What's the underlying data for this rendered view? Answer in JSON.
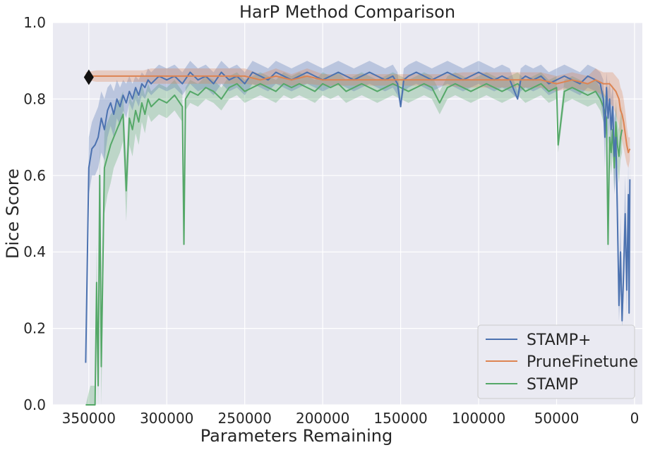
{
  "chart_data": {
    "type": "line",
    "title": "HarP Method Comparison",
    "xlabel": "Parameters Remaining",
    "ylabel": "Dice Score",
    "xlim": [
      373000,
      -5000
    ],
    "ylim": [
      0.0,
      1.0
    ],
    "x_ticks": [
      350000,
      300000,
      250000,
      200000,
      150000,
      100000,
      50000,
      0
    ],
    "x_tick_labels": [
      "350000",
      "300000",
      "250000",
      "200000",
      "150000",
      "100000",
      "50000",
      "0"
    ],
    "y_ticks": [
      0.0,
      0.2,
      0.4,
      0.6,
      0.8,
      1.0
    ],
    "y_tick_labels": [
      "0.0",
      "0.2",
      "0.4",
      "0.6",
      "0.8",
      "1.0"
    ],
    "grid": true,
    "legend_position": "bottom-right",
    "colors": {
      "background": "#eaeaf2",
      "grid": "#ffffff",
      "stamp_plus": "#4c72b0",
      "prune_finetune": "#dd8452",
      "stamp": "#55a868",
      "marker": "#111111"
    },
    "series": [
      {
        "name": "STAMP+",
        "color": "#4c72b0",
        "x": [
          352000,
          350000,
          348000,
          346000,
          344000,
          342000,
          340000,
          338000,
          336000,
          334000,
          332000,
          330000,
          328000,
          326000,
          324000,
          322000,
          320000,
          318000,
          316000,
          314000,
          312000,
          310000,
          305000,
          300000,
          295000,
          290000,
          285000,
          280000,
          275000,
          270000,
          265000,
          260000,
          255000,
          250000,
          245000,
          240000,
          235000,
          230000,
          225000,
          220000,
          215000,
          210000,
          205000,
          200000,
          195000,
          190000,
          185000,
          180000,
          175000,
          170000,
          165000,
          160000,
          155000,
          152000,
          150000,
          148000,
          145000,
          140000,
          135000,
          130000,
          125000,
          120000,
          115000,
          110000,
          105000,
          100000,
          95000,
          90000,
          85000,
          80000,
          75000,
          73000,
          70000,
          65000,
          60000,
          55000,
          50000,
          45000,
          40000,
          35000,
          30000,
          25000,
          22000,
          20000,
          19000,
          18000,
          17000,
          16000,
          15000,
          14000,
          13000,
          12000,
          11000,
          10000,
          9000,
          8000,
          7000,
          6000,
          5000,
          4000,
          3500,
          3000
        ],
        "y": [
          0.11,
          0.62,
          0.67,
          0.68,
          0.7,
          0.75,
          0.72,
          0.77,
          0.79,
          0.76,
          0.8,
          0.78,
          0.81,
          0.79,
          0.82,
          0.8,
          0.83,
          0.81,
          0.84,
          0.83,
          0.85,
          0.84,
          0.86,
          0.85,
          0.86,
          0.84,
          0.87,
          0.85,
          0.86,
          0.84,
          0.87,
          0.85,
          0.86,
          0.84,
          0.87,
          0.86,
          0.85,
          0.87,
          0.86,
          0.85,
          0.86,
          0.87,
          0.86,
          0.85,
          0.86,
          0.87,
          0.86,
          0.85,
          0.86,
          0.87,
          0.86,
          0.85,
          0.86,
          0.84,
          0.78,
          0.85,
          0.86,
          0.87,
          0.86,
          0.85,
          0.86,
          0.87,
          0.86,
          0.85,
          0.86,
          0.87,
          0.86,
          0.85,
          0.86,
          0.85,
          0.8,
          0.85,
          0.86,
          0.85,
          0.86,
          0.84,
          0.85,
          0.86,
          0.85,
          0.84,
          0.86,
          0.85,
          0.84,
          0.8,
          0.7,
          0.83,
          0.75,
          0.8,
          0.72,
          0.78,
          0.65,
          0.7,
          0.5,
          0.26,
          0.4,
          0.22,
          0.35,
          0.5,
          0.3,
          0.55,
          0.24,
          0.59
        ],
        "lower": [
          0.11,
          0.55,
          0.6,
          0.6,
          0.62,
          0.66,
          0.64,
          0.7,
          0.73,
          0.7,
          0.75,
          0.73,
          0.77,
          0.75,
          0.79,
          0.77,
          0.8,
          0.78,
          0.81,
          0.8,
          0.82,
          0.81,
          0.83,
          0.82,
          0.83,
          0.81,
          0.84,
          0.82,
          0.83,
          0.81,
          0.84,
          0.82,
          0.83,
          0.81,
          0.84,
          0.83,
          0.82,
          0.84,
          0.83,
          0.82,
          0.83,
          0.84,
          0.83,
          0.82,
          0.83,
          0.84,
          0.83,
          0.82,
          0.83,
          0.84,
          0.83,
          0.82,
          0.83,
          0.81,
          0.78,
          0.82,
          0.83,
          0.84,
          0.83,
          0.82,
          0.83,
          0.84,
          0.83,
          0.82,
          0.83,
          0.84,
          0.83,
          0.82,
          0.83,
          0.82,
          0.8,
          0.82,
          0.83,
          0.82,
          0.83,
          0.81,
          0.82,
          0.83,
          0.82,
          0.81,
          0.83,
          0.82,
          0.8,
          0.75,
          0.62,
          0.78,
          0.68,
          0.74,
          0.64,
          0.7,
          0.55,
          0.6,
          0.4,
          0.22,
          0.3,
          0.2,
          0.28,
          0.4,
          0.24,
          0.45,
          0.22,
          0.5
        ],
        "upper": [
          0.11,
          0.7,
          0.74,
          0.76,
          0.78,
          0.82,
          0.8,
          0.83,
          0.84,
          0.82,
          0.85,
          0.83,
          0.85,
          0.84,
          0.86,
          0.84,
          0.86,
          0.85,
          0.87,
          0.86,
          0.88,
          0.87,
          0.89,
          0.88,
          0.89,
          0.87,
          0.9,
          0.88,
          0.89,
          0.87,
          0.9,
          0.88,
          0.89,
          0.87,
          0.9,
          0.89,
          0.88,
          0.9,
          0.89,
          0.88,
          0.89,
          0.9,
          0.89,
          0.88,
          0.89,
          0.9,
          0.89,
          0.88,
          0.89,
          0.9,
          0.89,
          0.88,
          0.89,
          0.87,
          0.8,
          0.88,
          0.89,
          0.9,
          0.89,
          0.88,
          0.89,
          0.9,
          0.89,
          0.88,
          0.89,
          0.9,
          0.89,
          0.88,
          0.89,
          0.88,
          0.82,
          0.88,
          0.89,
          0.88,
          0.89,
          0.87,
          0.88,
          0.89,
          0.88,
          0.87,
          0.89,
          0.88,
          0.87,
          0.85,
          0.78,
          0.87,
          0.82,
          0.85,
          0.8,
          0.84,
          0.75,
          0.78,
          0.6,
          0.32,
          0.5,
          0.26,
          0.44,
          0.6,
          0.38,
          0.64,
          0.28,
          0.66
        ]
      },
      {
        "name": "PruneFinetune",
        "color": "#dd8452",
        "x": [
          352000,
          345000,
          340000,
          335000,
          330000,
          325000,
          320000,
          315000,
          310000,
          305000,
          300000,
          290000,
          280000,
          270000,
          260000,
          250000,
          240000,
          230000,
          220000,
          210000,
          200000,
          190000,
          180000,
          170000,
          160000,
          150000,
          140000,
          130000,
          120000,
          110000,
          100000,
          90000,
          80000,
          70000,
          60000,
          50000,
          40000,
          30000,
          25000,
          20000,
          18000,
          16000,
          14000,
          12000,
          10000,
          9000,
          8000,
          7000,
          6000,
          5000,
          4000,
          3000
        ],
        "y": [
          0.86,
          0.86,
          0.86,
          0.86,
          0.86,
          0.86,
          0.86,
          0.86,
          0.86,
          0.86,
          0.86,
          0.86,
          0.86,
          0.86,
          0.86,
          0.86,
          0.85,
          0.86,
          0.85,
          0.86,
          0.85,
          0.85,
          0.85,
          0.85,
          0.85,
          0.85,
          0.85,
          0.85,
          0.85,
          0.85,
          0.85,
          0.85,
          0.85,
          0.85,
          0.85,
          0.84,
          0.85,
          0.84,
          0.85,
          0.84,
          0.84,
          0.84,
          0.83,
          0.82,
          0.8,
          0.77,
          0.76,
          0.74,
          0.71,
          0.68,
          0.66,
          0.67
        ],
        "lower": [
          0.85,
          0.845,
          0.845,
          0.845,
          0.845,
          0.845,
          0.845,
          0.845,
          0.84,
          0.84,
          0.84,
          0.84,
          0.84,
          0.84,
          0.84,
          0.84,
          0.835,
          0.84,
          0.835,
          0.84,
          0.835,
          0.835,
          0.835,
          0.835,
          0.835,
          0.835,
          0.835,
          0.835,
          0.835,
          0.83,
          0.83,
          0.83,
          0.83,
          0.83,
          0.83,
          0.82,
          0.83,
          0.82,
          0.82,
          0.81,
          0.8,
          0.79,
          0.78,
          0.76,
          0.73,
          0.7,
          0.69,
          0.67,
          0.65,
          0.63,
          0.62,
          0.64
        ],
        "upper": [
          0.87,
          0.875,
          0.875,
          0.875,
          0.875,
          0.875,
          0.875,
          0.875,
          0.88,
          0.88,
          0.88,
          0.88,
          0.88,
          0.88,
          0.88,
          0.88,
          0.865,
          0.88,
          0.865,
          0.88,
          0.865,
          0.865,
          0.865,
          0.865,
          0.865,
          0.865,
          0.865,
          0.865,
          0.865,
          0.87,
          0.87,
          0.87,
          0.87,
          0.87,
          0.87,
          0.86,
          0.87,
          0.86,
          0.88,
          0.87,
          0.87,
          0.87,
          0.87,
          0.86,
          0.85,
          0.83,
          0.82,
          0.8,
          0.77,
          0.73,
          0.7,
          0.7
        ]
      },
      {
        "name": "STAMP",
        "color": "#55a868",
        "x": [
          352000,
          349000,
          347000,
          346000,
          345000,
          344000,
          343000,
          342000,
          340000,
          338000,
          336000,
          334000,
          332000,
          330000,
          328000,
          326000,
          324000,
          322000,
          320000,
          318000,
          316000,
          314000,
          312000,
          310000,
          305000,
          300000,
          295000,
          290000,
          289000,
          288000,
          285000,
          280000,
          275000,
          270000,
          265000,
          260000,
          255000,
          250000,
          245000,
          240000,
          235000,
          230000,
          225000,
          220000,
          215000,
          210000,
          205000,
          200000,
          195000,
          190000,
          185000,
          180000,
          175000,
          170000,
          165000,
          160000,
          155000,
          150000,
          145000,
          140000,
          135000,
          130000,
          125000,
          120000,
          115000,
          110000,
          105000,
          100000,
          95000,
          90000,
          85000,
          80000,
          75000,
          70000,
          65000,
          60000,
          55000,
          50000,
          49000,
          45000,
          40000,
          35000,
          30000,
          25000,
          22000,
          20000,
          18000,
          17000,
          16000,
          15000,
          14000,
          13000,
          12000,
          11000,
          10000,
          9000,
          8000
        ],
        "y": [
          0.0,
          0.0,
          0.0,
          0.0,
          0.32,
          0.05,
          0.6,
          0.1,
          0.62,
          0.65,
          0.68,
          0.7,
          0.72,
          0.74,
          0.76,
          0.56,
          0.75,
          0.72,
          0.77,
          0.74,
          0.79,
          0.76,
          0.8,
          0.78,
          0.8,
          0.79,
          0.81,
          0.78,
          0.42,
          0.8,
          0.82,
          0.81,
          0.83,
          0.82,
          0.8,
          0.83,
          0.84,
          0.82,
          0.83,
          0.84,
          0.83,
          0.82,
          0.84,
          0.83,
          0.84,
          0.83,
          0.82,
          0.84,
          0.83,
          0.84,
          0.82,
          0.83,
          0.84,
          0.83,
          0.82,
          0.83,
          0.84,
          0.83,
          0.82,
          0.83,
          0.84,
          0.83,
          0.79,
          0.83,
          0.84,
          0.83,
          0.82,
          0.83,
          0.84,
          0.83,
          0.82,
          0.83,
          0.84,
          0.82,
          0.83,
          0.84,
          0.82,
          0.83,
          0.68,
          0.82,
          0.83,
          0.82,
          0.81,
          0.82,
          0.8,
          0.78,
          0.75,
          0.42,
          0.7,
          0.66,
          0.72,
          0.62,
          0.74,
          0.68,
          0.65,
          0.7,
          0.72
        ],
        "lower": [
          0.0,
          0.0,
          0.0,
          0.0,
          0.2,
          0.0,
          0.45,
          0.0,
          0.5,
          0.55,
          0.58,
          0.62,
          0.64,
          0.66,
          0.69,
          0.48,
          0.68,
          0.65,
          0.71,
          0.68,
          0.74,
          0.71,
          0.76,
          0.74,
          0.76,
          0.75,
          0.77,
          0.74,
          0.42,
          0.77,
          0.79,
          0.78,
          0.8,
          0.79,
          0.77,
          0.8,
          0.81,
          0.79,
          0.8,
          0.81,
          0.8,
          0.79,
          0.81,
          0.8,
          0.81,
          0.8,
          0.79,
          0.81,
          0.8,
          0.81,
          0.79,
          0.8,
          0.81,
          0.8,
          0.79,
          0.8,
          0.81,
          0.8,
          0.79,
          0.8,
          0.81,
          0.8,
          0.76,
          0.8,
          0.81,
          0.8,
          0.79,
          0.8,
          0.81,
          0.8,
          0.79,
          0.8,
          0.81,
          0.79,
          0.8,
          0.81,
          0.79,
          0.8,
          0.66,
          0.79,
          0.8,
          0.79,
          0.78,
          0.79,
          0.77,
          0.74,
          0.7,
          0.4,
          0.64,
          0.6,
          0.66,
          0.56,
          0.68,
          0.62,
          0.58,
          0.64,
          0.66
        ],
        "upper": [
          0.0,
          0.05,
          0.05,
          0.05,
          0.42,
          0.12,
          0.7,
          0.22,
          0.72,
          0.74,
          0.76,
          0.77,
          0.79,
          0.8,
          0.82,
          0.64,
          0.81,
          0.79,
          0.83,
          0.8,
          0.84,
          0.81,
          0.84,
          0.82,
          0.84,
          0.83,
          0.85,
          0.82,
          0.44,
          0.83,
          0.85,
          0.84,
          0.86,
          0.85,
          0.83,
          0.86,
          0.87,
          0.85,
          0.86,
          0.87,
          0.86,
          0.85,
          0.87,
          0.86,
          0.87,
          0.86,
          0.85,
          0.87,
          0.86,
          0.87,
          0.85,
          0.86,
          0.87,
          0.86,
          0.85,
          0.86,
          0.87,
          0.86,
          0.85,
          0.86,
          0.87,
          0.86,
          0.82,
          0.86,
          0.87,
          0.86,
          0.85,
          0.86,
          0.87,
          0.86,
          0.85,
          0.86,
          0.87,
          0.85,
          0.86,
          0.87,
          0.85,
          0.86,
          0.7,
          0.85,
          0.86,
          0.85,
          0.84,
          0.85,
          0.83,
          0.82,
          0.8,
          0.44,
          0.76,
          0.72,
          0.78,
          0.68,
          0.8,
          0.74,
          0.72,
          0.76,
          0.78
        ]
      }
    ],
    "annotations": [
      {
        "type": "marker",
        "shape": "diamond",
        "x": 350000,
        "y": 0.857,
        "color": "#111111"
      }
    ]
  }
}
